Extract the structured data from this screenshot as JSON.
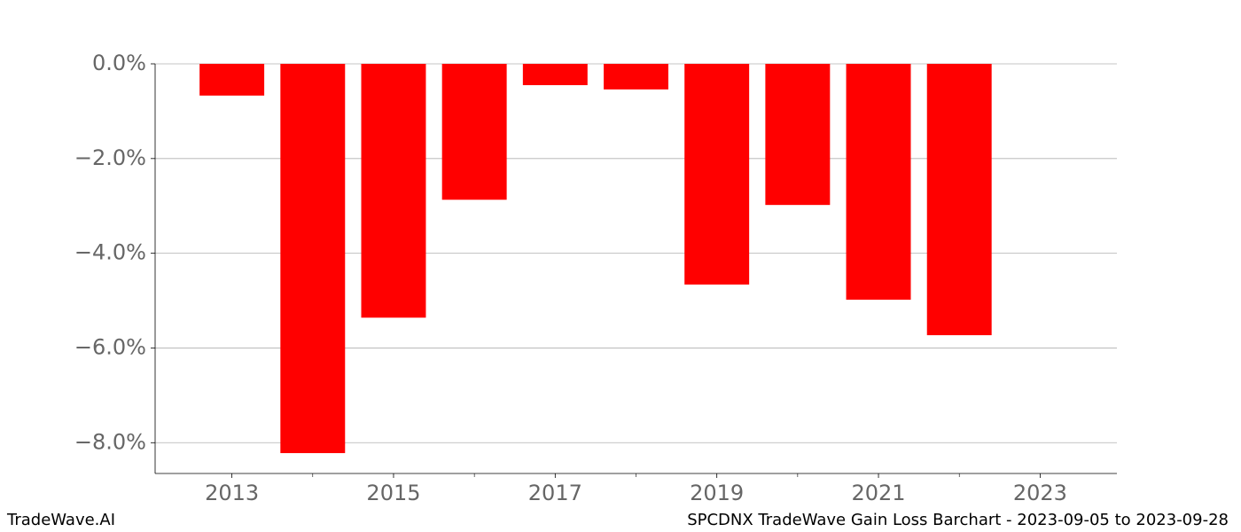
{
  "chart_data": {
    "type": "bar",
    "x": [
      2013,
      2014,
      2015,
      2016,
      2017,
      2018,
      2019,
      2020,
      2021,
      2022
    ],
    "values": [
      -0.67,
      -8.22,
      -5.36,
      -2.87,
      -0.45,
      -0.54,
      -4.66,
      -2.98,
      -4.98,
      -5.73
    ],
    "color": "#ff0000",
    "bar_width": 0.8,
    "xlim": [
      2012.05,
      2023.95
    ],
    "xticks": [
      2013,
      2015,
      2017,
      2019,
      2021,
      2023
    ],
    "xminorticks": [
      2014,
      2016,
      2018,
      2020,
      2022
    ],
    "ylim": [
      -8.65,
      0
    ],
    "yticks": [
      {
        "value": 0,
        "label": "0.0%"
      },
      {
        "value": -2,
        "label": "−2.0%"
      },
      {
        "value": -4,
        "label": "−4.0%"
      },
      {
        "value": -6,
        "label": "−6.0%"
      },
      {
        "value": -8,
        "label": "−8.0%"
      }
    ],
    "grid": true,
    "footer_left": "TradeWave.AI",
    "footer_right": "SPCDNX TradeWave Gain Loss Barchart - 2023-09-05 to 2023-09-28"
  }
}
